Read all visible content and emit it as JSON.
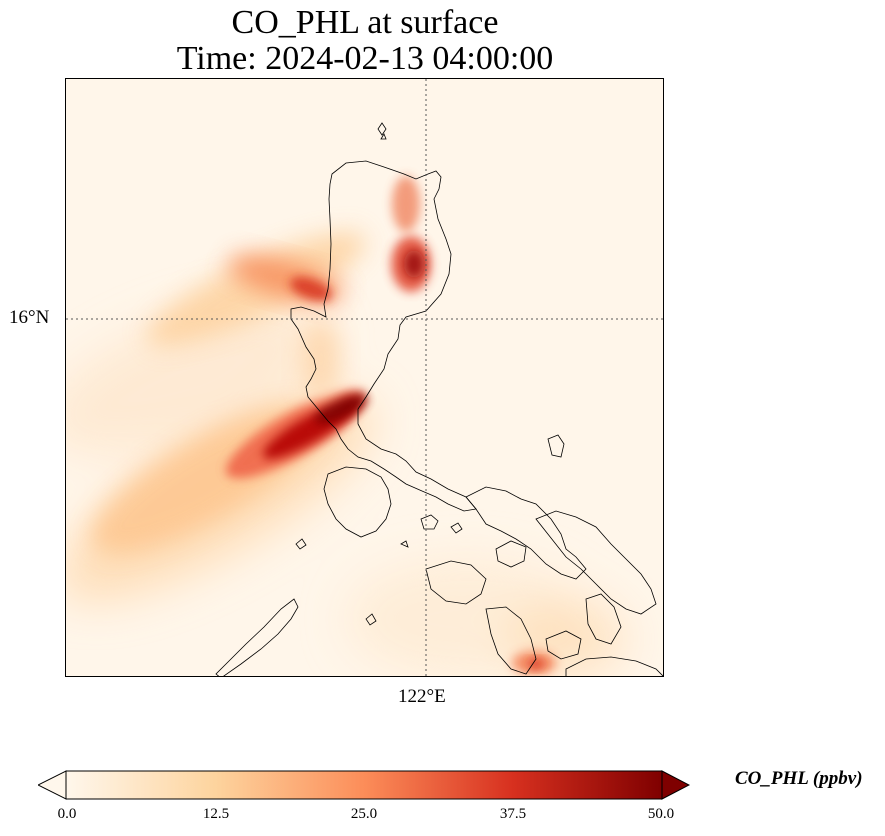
{
  "title": {
    "line1": "CO_PHL at surface",
    "line2": "Time: 2024-02-13 04:00:00"
  },
  "map": {
    "lat_tick_label": "16°N",
    "lon_tick_label": "122°E",
    "background_color": "#fff6ea",
    "coastline_color": "#000000",
    "gridline_style": "dotted"
  },
  "colorbar": {
    "label": "CO_PHL (ppbv)",
    "ticks": [
      "0.0",
      "12.5",
      "25.0",
      "37.5",
      "50.0"
    ],
    "min": 0,
    "max": 50,
    "extend": "both",
    "colormap": "OrRd",
    "colors": [
      "#fff7ec",
      "#fdd49e",
      "#fc8d59",
      "#d7301f",
      "#7f0000"
    ]
  }
}
